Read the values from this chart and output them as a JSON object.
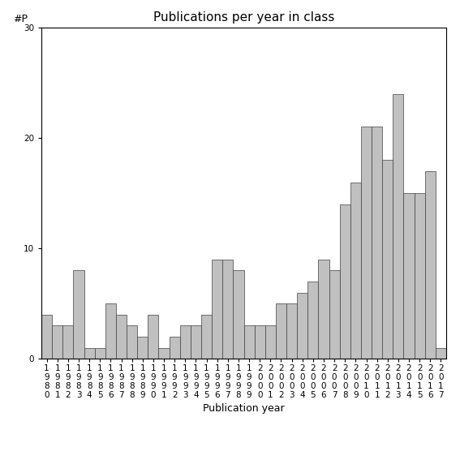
{
  "title": "Publications per year in class",
  "xlabel": "Publication year",
  "ylabel": "#P",
  "ylim": [
    0,
    30
  ],
  "yticks": [
    0,
    10,
    20,
    30
  ],
  "years": [
    1980,
    1981,
    1982,
    1983,
    1984,
    1985,
    1986,
    1987,
    1988,
    1989,
    1990,
    1991,
    1992,
    1993,
    1994,
    1995,
    1996,
    1997,
    1998,
    1999,
    2000,
    2001,
    2002,
    2003,
    2004,
    2005,
    2006,
    2007,
    2008,
    2009,
    2010,
    2011,
    2012,
    2013,
    2014,
    2015,
    2016,
    2017
  ],
  "values": [
    4,
    3,
    3,
    8,
    1,
    1,
    5,
    4,
    3,
    2,
    4,
    1,
    2,
    3,
    3,
    4,
    9,
    9,
    8,
    3,
    3,
    3,
    5,
    5,
    6,
    7,
    9,
    8,
    14,
    16,
    21,
    21,
    18,
    24,
    15,
    15,
    17,
    1
  ],
  "bar_color": "#c0c0c0",
  "bar_edge_color": "#404040",
  "bar_edge_width": 0.5,
  "background_color": "#ffffff",
  "title_fontsize": 11,
  "label_fontsize": 9,
  "tick_fontsize": 7.5
}
